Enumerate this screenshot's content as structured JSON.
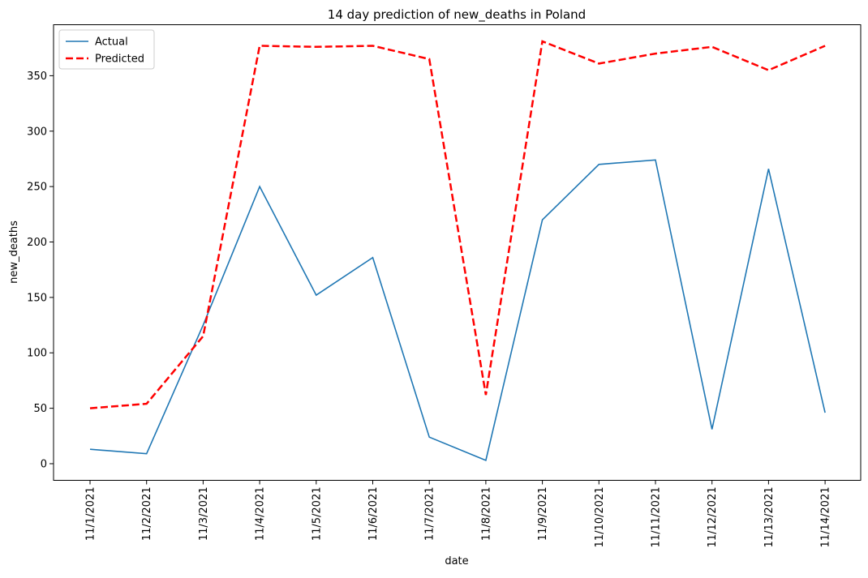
{
  "chart_data": {
    "type": "line",
    "title": "14 day prediction of new_deaths in Poland",
    "xlabel": "date",
    "ylabel": "new_deaths",
    "categories": [
      "11/1/2021",
      "11/2/2021",
      "11/3/2021",
      "11/4/2021",
      "11/5/2021",
      "11/6/2021",
      "11/7/2021",
      "11/8/2021",
      "11/9/2021",
      "11/10/2021",
      "11/11/2021",
      "11/12/2021",
      "11/13/2021",
      "11/14/2021"
    ],
    "ylim": [
      -15,
      396
    ],
    "yticks": [
      0,
      50,
      100,
      150,
      200,
      250,
      300,
      350
    ],
    "grid": false,
    "legend_position": "top-left",
    "series": [
      {
        "name": "Actual",
        "color": "#1f77b4",
        "style": "solid",
        "values": [
          13,
          9,
          125,
          250,
          152,
          186,
          24,
          3,
          220,
          270,
          274,
          31,
          266,
          46
        ]
      },
      {
        "name": "Predicted",
        "color": "#ff0000",
        "style": "dashed",
        "values": [
          50,
          54,
          115,
          377,
          376,
          377,
          365,
          62,
          381,
          361,
          370,
          376,
          355,
          377
        ]
      }
    ]
  }
}
